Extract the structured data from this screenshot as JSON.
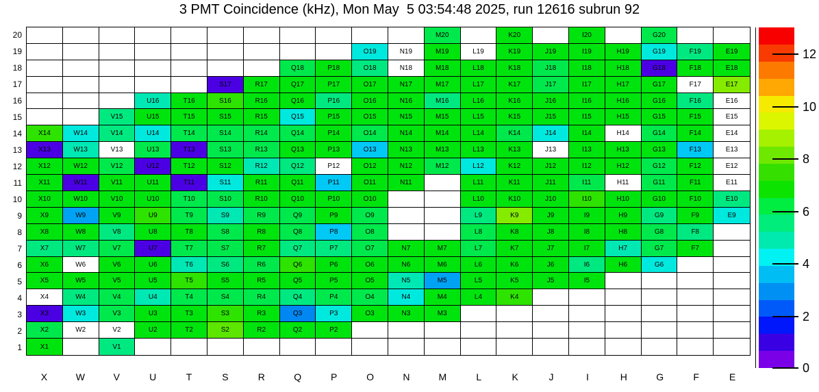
{
  "title": "3 PMT Coincidence (kHz), Mon May  5 03:54:48 2025, run 12616 subrun 92",
  "chart_data": {
    "type": "heatmap",
    "title": "3 PMT Coincidence (kHz), Mon May  5 03:54:48 2025, run 12616 subrun 92",
    "unit": "kHz",
    "columns": [
      "X",
      "W",
      "V",
      "U",
      "T",
      "S",
      "R",
      "Q",
      "P",
      "O",
      "N",
      "M",
      "L",
      "K",
      "J",
      "I",
      "H",
      "G",
      "F",
      "E"
    ],
    "rows": [
      20,
      19,
      18,
      17,
      16,
      15,
      14,
      13,
      12,
      11,
      10,
      9,
      8,
      7,
      6,
      5,
      4,
      3,
      2,
      1
    ],
    "palette": {
      "w": {
        "color": "#ffffff",
        "value_approx": null,
        "label_shown": false
      },
      "w0": {
        "color": "#ffffff",
        "value_approx": 0.0,
        "label_shown": true
      },
      "bv": {
        "color": "#4b00e4",
        "value_approx": 1.0,
        "label_shown": true
      },
      "b2": {
        "color": "#0087f2",
        "value_approx": 2.8,
        "label_shown": true
      },
      "lb": {
        "color": "#00a3f4",
        "value_approx": 3.3,
        "label_shown": true
      },
      "cb": {
        "color": "#00c9f6",
        "value_approx": 3.9,
        "label_shown": true
      },
      "cy": {
        "color": "#00e9de",
        "value_approx": 4.4,
        "label_shown": true
      },
      "tg": {
        "color": "#00e8b4",
        "value_approx": 5.0,
        "label_shown": true
      },
      "sg": {
        "color": "#00e980",
        "value_approx": 5.6,
        "label_shown": true
      },
      "gs": {
        "color": "#00e94c",
        "value_approx": 6.2,
        "label_shown": true
      },
      "g": {
        "color": "#00e40e",
        "value_approx": 6.9,
        "label_shown": true
      },
      "g2": {
        "color": "#2ee300",
        "value_approx": 7.5,
        "label_shown": true
      },
      "ch": {
        "color": "#5ce600",
        "value_approx": 8.2,
        "label_shown": true
      },
      "yg": {
        "color": "#85ec00",
        "value_approx": 8.9,
        "label_shown": true
      }
    },
    "cells": [
      [
        "w",
        "w",
        "w",
        "w",
        "w",
        "w",
        "w",
        "w",
        "w",
        "w",
        "w",
        "gs",
        "w",
        "g",
        "w",
        "g",
        "w",
        "gs",
        "w",
        "w"
      ],
      [
        "w",
        "w",
        "w",
        "w",
        "w",
        "w",
        "w",
        "w",
        "w",
        "cy",
        "w0",
        "g",
        "w0",
        "g",
        "g",
        "g",
        "g",
        "cy",
        "sg",
        "g"
      ],
      [
        "w",
        "w",
        "w",
        "w",
        "w",
        "w",
        "w",
        "gs",
        "g",
        "sg",
        "w0",
        "g",
        "g",
        "g",
        "gs",
        "g",
        "g",
        "bv",
        "g",
        "g"
      ],
      [
        "w",
        "w",
        "w",
        "w",
        "w",
        "bv",
        "g",
        "g",
        "g",
        "g",
        "g",
        "g",
        "g",
        "g",
        "gs",
        "g",
        "g",
        "g",
        "w0",
        "yg"
      ],
      [
        "w",
        "w",
        "w",
        "tg",
        "g",
        "g2",
        "g",
        "g",
        "sg",
        "g",
        "g",
        "sg",
        "g",
        "g",
        "g",
        "g",
        "g",
        "g",
        "sg",
        "w0"
      ],
      [
        "w",
        "w",
        "sg",
        "g",
        "g",
        "g",
        "g",
        "cy",
        "g",
        "g",
        "g",
        "g",
        "g",
        "g",
        "g",
        "g",
        "g",
        "g",
        "g",
        "w0"
      ],
      [
        "g2",
        "cy",
        "sg",
        "cy",
        "gs",
        "gs",
        "gs",
        "gs",
        "g",
        "gs",
        "g",
        "g",
        "g",
        "gs",
        "cy",
        "g",
        "w0",
        "gs",
        "g",
        "w0"
      ],
      [
        "bv",
        "tg",
        "w0",
        "gs",
        "bv",
        "gs",
        "gs",
        "g",
        "g",
        "cb",
        "g",
        "g",
        "g",
        "g",
        "w0",
        "g",
        "g",
        "g",
        "cb",
        "w0"
      ],
      [
        "g",
        "g",
        "gs",
        "bv",
        "g",
        "g",
        "tg",
        "sg",
        "w0",
        "g",
        "g",
        "gs",
        "cy",
        "g",
        "g",
        "g",
        "g",
        "gs",
        "g",
        "w0"
      ],
      [
        "g",
        "bv",
        "g",
        "g",
        "bv",
        "cy",
        "g",
        "g",
        "cb",
        "g",
        "g",
        "w",
        "g",
        "g",
        "g",
        "gs",
        "w0",
        "gs",
        "g",
        "w0"
      ],
      [
        "g",
        "g",
        "g",
        "g",
        "gs",
        "gs",
        "g",
        "g",
        "g",
        "g",
        "w",
        "w",
        "g",
        "g",
        "g",
        "g2",
        "g",
        "g",
        "g",
        "sg"
      ],
      [
        "g",
        "lb",
        "g",
        "g2",
        "gs",
        "tg",
        "gs",
        "gs",
        "g",
        "gs",
        "w",
        "w",
        "sg",
        "yg",
        "g",
        "g",
        "g",
        "sg",
        "g",
        "cy"
      ],
      [
        "g",
        "g",
        "sg",
        "g",
        "g",
        "gs",
        "g",
        "gs",
        "cb",
        "gs",
        "w",
        "w",
        "gs",
        "g",
        "g",
        "g",
        "g",
        "gs",
        "sg",
        "w"
      ],
      [
        "sg",
        "sg",
        "gs",
        "bv",
        "gs",
        "gs",
        "g",
        "sg",
        "sg",
        "gs",
        "g",
        "g",
        "gs",
        "g",
        "g",
        "g",
        "tg",
        "gs",
        "g",
        "w"
      ],
      [
        "g",
        "w0",
        "g",
        "g",
        "tg",
        "sg",
        "gs",
        "g2",
        "g",
        "g",
        "g",
        "g",
        "g",
        "g",
        "g",
        "sg",
        "g",
        "cy",
        "w",
        "w"
      ],
      [
        "g",
        "g",
        "g",
        "g",
        "g2",
        "g",
        "g",
        "g",
        "g",
        "g",
        "tg",
        "lb",
        "g",
        "g",
        "g",
        "g",
        "w",
        "w",
        "w",
        "w"
      ],
      [
        "w0",
        "sg",
        "gs",
        "tg",
        "gs",
        "gs",
        "gs",
        "sg",
        "gs",
        "gs",
        "cy",
        "g",
        "g",
        "g2",
        "w",
        "w",
        "w",
        "w",
        "w",
        "w"
      ],
      [
        "bv",
        "cy",
        "gs",
        "g",
        "g",
        "g2",
        "g",
        "b2",
        "cy",
        "g",
        "g",
        "g",
        "w",
        "w",
        "w",
        "w",
        "w",
        "w",
        "w",
        "w"
      ],
      [
        "gs",
        "w0",
        "w0",
        "g",
        "g",
        "ch",
        "g",
        "g",
        "g",
        "w",
        "w",
        "w",
        "w",
        "w",
        "w",
        "w",
        "w",
        "w",
        "w",
        "w"
      ],
      [
        "g",
        "w",
        "sg",
        "w",
        "w",
        "w",
        "w",
        "w",
        "w",
        "w",
        "w",
        "w",
        "w",
        "w",
        "w",
        "w",
        "w",
        "w",
        "w",
        "w"
      ]
    ],
    "colorbar": {
      "colors_bottom_to_top": [
        "#7a00e8",
        "#3a00e4",
        "#0016fb",
        "#005af9",
        "#0090f3",
        "#00bdf4",
        "#00f2f3",
        "#00e9ae",
        "#00ec7b",
        "#00ee42",
        "#0ce400",
        "#35df00",
        "#6fe800",
        "#a6f100",
        "#dcf600",
        "#f6ea00",
        "#ffa702",
        "#fd7a00",
        "#f83b00",
        "#f80000"
      ],
      "range": [
        0,
        13
      ],
      "tick_values": [
        12,
        10,
        8,
        6,
        4,
        2,
        0
      ],
      "tick_labels": [
        "12",
        "10",
        "8",
        "6",
        "4",
        "2",
        "0"
      ],
      "position": "right"
    },
    "grid_lines": true,
    "legend_position": "right"
  }
}
